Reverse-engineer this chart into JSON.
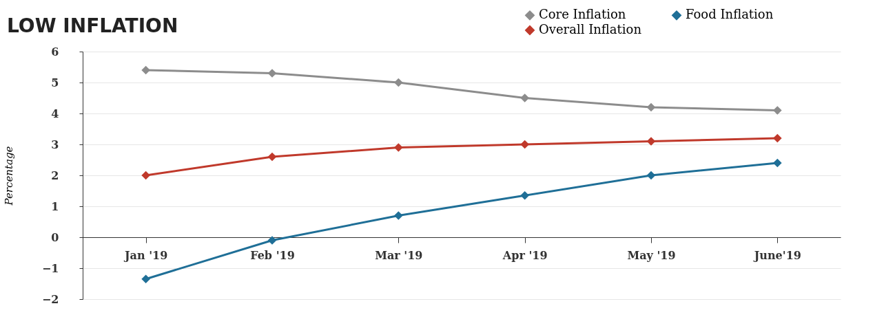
{
  "chart_data": {
    "type": "line",
    "title": "LOW INFLATION",
    "ylabel": "Percentage",
    "categories": [
      "Jan '19",
      "Feb '19",
      "Mar '19",
      "Apr '19",
      "May '19",
      "June'19"
    ],
    "series": [
      {
        "name": "Core Inflation",
        "color": "#8c8c8c",
        "values": [
          5.4,
          5.3,
          5.0,
          4.5,
          4.2,
          4.1
        ]
      },
      {
        "name": "Food Inflation",
        "color": "#1f6f97",
        "values": [
          -1.35,
          -0.1,
          0.7,
          1.35,
          2.0,
          2.4
        ]
      },
      {
        "name": "Overall Inflation",
        "color": "#c0392b",
        "values": [
          2.0,
          2.6,
          2.9,
          3.0,
          3.1,
          3.2
        ]
      }
    ],
    "ylim": [
      -2,
      6
    ],
    "yticks": [
      -2,
      -1,
      0,
      1,
      2,
      3,
      4,
      5,
      6
    ],
    "grid": "y",
    "legend": "top right",
    "marker": "diamond",
    "line_style": "solid"
  }
}
